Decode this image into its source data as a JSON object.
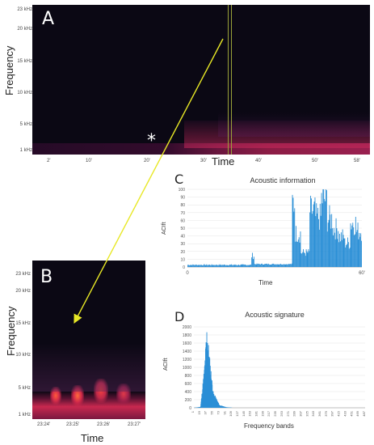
{
  "panel_a": {
    "label": "A",
    "ylabel": "Frequency",
    "xlabel": "Time",
    "y_ticks": [
      "23 kHz",
      "20 kHz",
      "15 kHz",
      "10 kHz",
      "5 kHz",
      "1 kHz"
    ],
    "x_ticks": [
      "2'",
      "10'",
      "20'",
      "30'",
      "40'",
      "50'",
      "58'"
    ],
    "marker": "*"
  },
  "panel_b": {
    "label": "B",
    "ylabel": "Frequency",
    "xlabel": "Time",
    "y_ticks": [
      "23 kHz",
      "20 kHz",
      "15 kHz",
      "10 kHz",
      "5 kHz",
      "1 kHz"
    ],
    "x_ticks": [
      "23:24'",
      "23:25'",
      "23:26'",
      "23:27'"
    ]
  },
  "panel_c": {
    "label": "C",
    "title": "Acoustic information",
    "ylabel": "ACIft",
    "xlabel": "Time",
    "y_ticks": [
      "100",
      "90",
      "80",
      "70",
      "60",
      "50",
      "40",
      "30",
      "20",
      "10",
      "0"
    ],
    "x_ticks": [
      "0",
      "60'"
    ]
  },
  "panel_d": {
    "label": "D",
    "title": "Acoustic signature",
    "ylabel": "ACIft",
    "xlabel": "Frequency bands",
    "y_ticks": [
      "2000",
      "1800",
      "1600",
      "1400",
      "1200",
      "1000",
      "800",
      "600",
      "400",
      "200",
      "0"
    ],
    "x_ticks": [
      "1",
      "19",
      "37",
      "55",
      "73",
      "91",
      "109",
      "127",
      "145",
      "163",
      "181",
      "199",
      "217",
      "235",
      "253",
      "271",
      "289",
      "307",
      "325",
      "343",
      "361",
      "379",
      "397",
      "415",
      "433",
      "451",
      "469",
      "487"
    ]
  },
  "colors": {
    "spectrogram_bg": "#0b0814",
    "spectrogram_hot": "#e0305a",
    "bar_blue": "#2b8fd6",
    "arrow": "#e8e826"
  },
  "chart_data": [
    {
      "type": "bar",
      "title": "Acoustic information",
      "xlabel": "Time",
      "ylabel": "ACIft",
      "ylim": [
        0,
        100
      ],
      "xlim": [
        0,
        60
      ],
      "segments": [
        {
          "x": [
            0,
            22
          ],
          "level": 2
        },
        {
          "x": [
            22,
            23
          ],
          "level": 14
        },
        {
          "x": [
            23,
            36
          ],
          "level": 3
        },
        {
          "x": [
            36,
            37
          ],
          "level": 80
        },
        {
          "x": [
            37,
            39
          ],
          "level": 42
        },
        {
          "x": [
            39,
            42
          ],
          "level": 18
        },
        {
          "x": [
            42,
            44
          ],
          "level": 70
        },
        {
          "x": [
            44,
            46
          ],
          "level": 62
        },
        {
          "x": [
            46,
            48
          ],
          "level": 85
        },
        {
          "x": [
            48,
            50
          ],
          "level": 60
        },
        {
          "x": [
            50,
            52
          ],
          "level": 48
        },
        {
          "x": [
            52,
            54
          ],
          "level": 38
        },
        {
          "x": [
            54,
            56
          ],
          "level": 30
        },
        {
          "x": [
            56,
            58
          ],
          "level": 55
        },
        {
          "x": [
            58,
            60
          ],
          "level": 45
        }
      ]
    },
    {
      "type": "bar",
      "title": "Acoustic signature",
      "xlabel": "Frequency bands",
      "ylabel": "ACIft",
      "ylim": [
        0,
        2000
      ],
      "bands": [
        1,
        19,
        37,
        55,
        73,
        91,
        109,
        127,
        145,
        163,
        181,
        199,
        217,
        235,
        253,
        271,
        289,
        307,
        325,
        343,
        361,
        379,
        397,
        415,
        433,
        451,
        469,
        487
      ],
      "peak": {
        "x": 37,
        "value": 1800
      },
      "profile": [
        {
          "x": 1,
          "value": 0
        },
        {
          "x": 19,
          "value": 20
        },
        {
          "x": 30,
          "value": 900
        },
        {
          "x": 37,
          "value": 1800
        },
        {
          "x": 45,
          "value": 1100
        },
        {
          "x": 55,
          "value": 350
        },
        {
          "x": 73,
          "value": 60
        },
        {
          "x": 91,
          "value": 15
        },
        {
          "x": 109,
          "value": 0
        }
      ]
    }
  ]
}
